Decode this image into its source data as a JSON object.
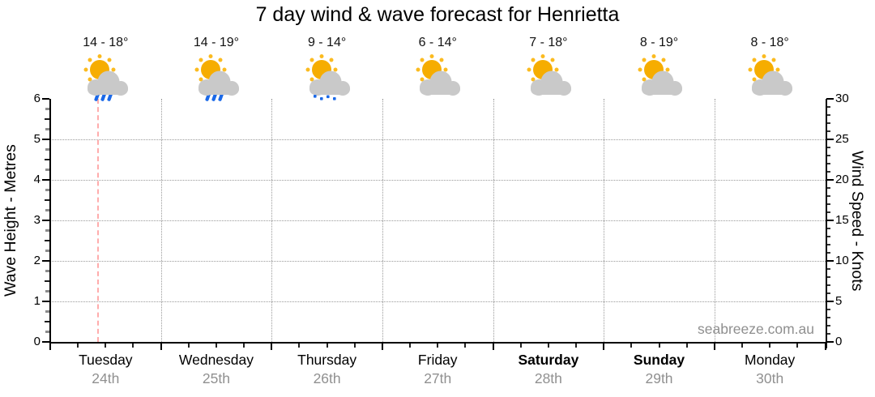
{
  "title": "7 day wind & wave forecast for Henrietta",
  "watermark": "seabreeze.com.au",
  "days": [
    {
      "name": "Tuesday",
      "date": "24th",
      "temp_range": "14 - 18°",
      "icon": "sun-cloud-rain",
      "weekend": false
    },
    {
      "name": "Wednesday",
      "date": "25th",
      "temp_range": "14 - 19°",
      "icon": "sun-cloud-rain",
      "weekend": false
    },
    {
      "name": "Thursday",
      "date": "26th",
      "temp_range": "9 - 14°",
      "icon": "sun-cloud-drizzle",
      "weekend": false
    },
    {
      "name": "Friday",
      "date": "27th",
      "temp_range": "6 - 14°",
      "icon": "sun-cloud",
      "weekend": false
    },
    {
      "name": "Saturday",
      "date": "28th",
      "temp_range": "7 - 18°",
      "icon": "sun-cloud",
      "weekend": true
    },
    {
      "name": "Sunday",
      "date": "29th",
      "temp_range": "8 - 19°",
      "icon": "sun-cloud",
      "weekend": true
    },
    {
      "name": "Monday",
      "date": "30th",
      "temp_range": "8 - 18°",
      "icon": "sun-cloud",
      "weekend": false
    }
  ],
  "left_axis": {
    "label": "Wave Height - Metres",
    "min": 0,
    "max": 6,
    "major_step": 1,
    "minor_step": 0.25,
    "tick_labels": [
      "0",
      "1",
      "2",
      "3",
      "4",
      "5",
      "6"
    ]
  },
  "right_axis": {
    "label": "Wind Speed - Knots",
    "min": 0,
    "max": 30,
    "major_step": 5,
    "minor_step": 1,
    "tick_labels": [
      "0",
      "5",
      "10",
      "15",
      "20",
      "25",
      "30"
    ]
  },
  "x_axis": {
    "days_shown": 7,
    "minor_ticks_per_day": 4
  },
  "current_time_marker": {
    "day_index": 0,
    "day_fraction": 0.435
  },
  "colors": {
    "sun": "#f6ad00",
    "sun_rays": "#fbbb20",
    "cloud": "#c9c9c9",
    "rain": "#1b69e8",
    "grid": "#9a9a9a",
    "marker": "#ffacac",
    "date_text": "#909090",
    "watermark": "#8f8f8f"
  },
  "chart_data": {
    "type": "line",
    "title": "7 day wind & wave forecast for Henrietta",
    "categories": [
      "Tuesday 24th",
      "Wednesday 25th",
      "Thursday 26th",
      "Friday 27th",
      "Saturday 28th",
      "Sunday 29th",
      "Monday 30th"
    ],
    "series": [],
    "note": "Forecast chart frame with no plotted wave/wind series visible; only daily condition icons and temperature ranges are shown.",
    "y_left": {
      "label": "Wave Height - Metres",
      "range": [
        0,
        6
      ],
      "ticks": [
        0,
        1,
        2,
        3,
        4,
        5,
        6
      ]
    },
    "y_right": {
      "label": "Wind Speed - Knots",
      "range": [
        0,
        30
      ],
      "ticks": [
        0,
        5,
        10,
        15,
        20,
        25,
        30
      ]
    },
    "temperatures_c": [
      {
        "day": "Tuesday",
        "min": 14,
        "max": 18
      },
      {
        "day": "Wednesday",
        "min": 14,
        "max": 19
      },
      {
        "day": "Thursday",
        "min": 9,
        "max": 14
      },
      {
        "day": "Friday",
        "min": 6,
        "max": 14
      },
      {
        "day": "Saturday",
        "min": 7,
        "max": 18
      },
      {
        "day": "Sunday",
        "min": 8,
        "max": 19
      },
      {
        "day": "Monday",
        "min": 8,
        "max": 18
      }
    ],
    "conditions": [
      "partly cloudy with rain",
      "partly cloudy with rain",
      "partly cloudy with drizzle",
      "partly cloudy",
      "partly cloudy",
      "partly cloudy",
      "partly cloudy"
    ],
    "grid": "dotted gray horizontal lines at wave heights 1-5, dotted gray vertical lines at day boundaries",
    "legend": "none",
    "annotations": [
      "dashed pink current-time marker within Tuesday",
      "seabreeze.com.au watermark bottom right"
    ]
  }
}
